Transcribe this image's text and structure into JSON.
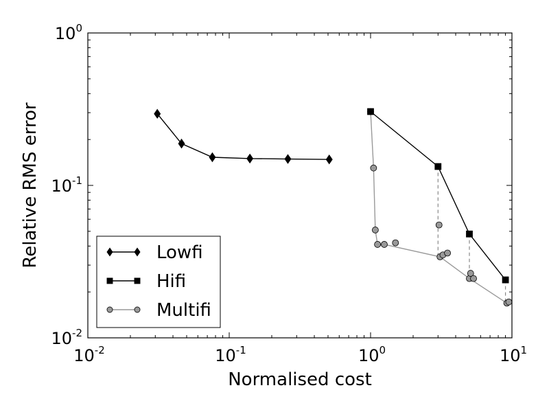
{
  "chart_data": {
    "type": "line",
    "title": "",
    "xlabel": "Normalised cost",
    "ylabel": "Relative RMS error",
    "xscale": "log",
    "yscale": "log",
    "xlim": [
      0.01,
      10
    ],
    "ylim": [
      0.01,
      1
    ],
    "x_ticks": [
      {
        "value": 0.01,
        "base": "10",
        "exp": "-2"
      },
      {
        "value": 0.1,
        "base": "10",
        "exp": "-1"
      },
      {
        "value": 1,
        "base": "10",
        "exp": "0"
      },
      {
        "value": 10,
        "base": "10",
        "exp": "1"
      }
    ],
    "y_ticks": [
      {
        "value": 0.01,
        "base": "10",
        "exp": "-2"
      },
      {
        "value": 0.1,
        "base": "10",
        "exp": "-1"
      },
      {
        "value": 1,
        "base": "10",
        "exp": "0"
      }
    ],
    "grid": false,
    "legend_position": "lower-left",
    "series": [
      {
        "name": "Lowfi",
        "marker": "diamond",
        "line_color": "#000000",
        "marker_color": "#000000",
        "points": [
          {
            "x": 0.031,
            "y": 0.295
          },
          {
            "x": 0.046,
            "y": 0.188
          },
          {
            "x": 0.076,
            "y": 0.153
          },
          {
            "x": 0.14,
            "y": 0.15
          },
          {
            "x": 0.26,
            "y": 0.149
          },
          {
            "x": 0.51,
            "y": 0.148
          }
        ]
      },
      {
        "name": "Hifi",
        "marker": "square",
        "line_color": "#000000",
        "marker_color": "#000000",
        "points": [
          {
            "x": 1.0,
            "y": 0.305
          },
          {
            "x": 3.0,
            "y": 0.133
          },
          {
            "x": 5.0,
            "y": 0.048
          },
          {
            "x": 9.0,
            "y": 0.024
          }
        ]
      },
      {
        "name": "Multifi",
        "marker": "circle",
        "line_color": "#999999",
        "marker_color": "#999999",
        "points": [
          {
            "x": 1.0,
            "y": 0.305
          },
          {
            "x": 1.05,
            "y": 0.13
          },
          {
            "x": 1.08,
            "y": 0.051
          },
          {
            "x": 1.12,
            "y": 0.041
          },
          {
            "x": 1.25,
            "y": 0.041
          },
          {
            "x": 3.1,
            "y": 0.034
          },
          {
            "x": 5.0,
            "y": 0.0245
          },
          {
            "x": 9.2,
            "y": 0.0169
          }
        ],
        "extra_points": [
          {
            "x": 1.5,
            "y": 0.042
          },
          {
            "x": 3.05,
            "y": 0.055
          },
          {
            "x": 3.25,
            "y": 0.035
          },
          {
            "x": 3.5,
            "y": 0.036
          },
          {
            "x": 5.1,
            "y": 0.0265
          },
          {
            "x": 5.35,
            "y": 0.0245
          },
          {
            "x": 9.5,
            "y": 0.0172
          }
        ]
      }
    ],
    "dashed_connectors": [
      {
        "x": 3.0,
        "y1": 0.133,
        "y2": 0.034
      },
      {
        "x": 5.0,
        "y1": 0.048,
        "y2": 0.0245
      },
      {
        "x": 9.0,
        "y1": 0.024,
        "y2": 0.0169
      }
    ]
  }
}
